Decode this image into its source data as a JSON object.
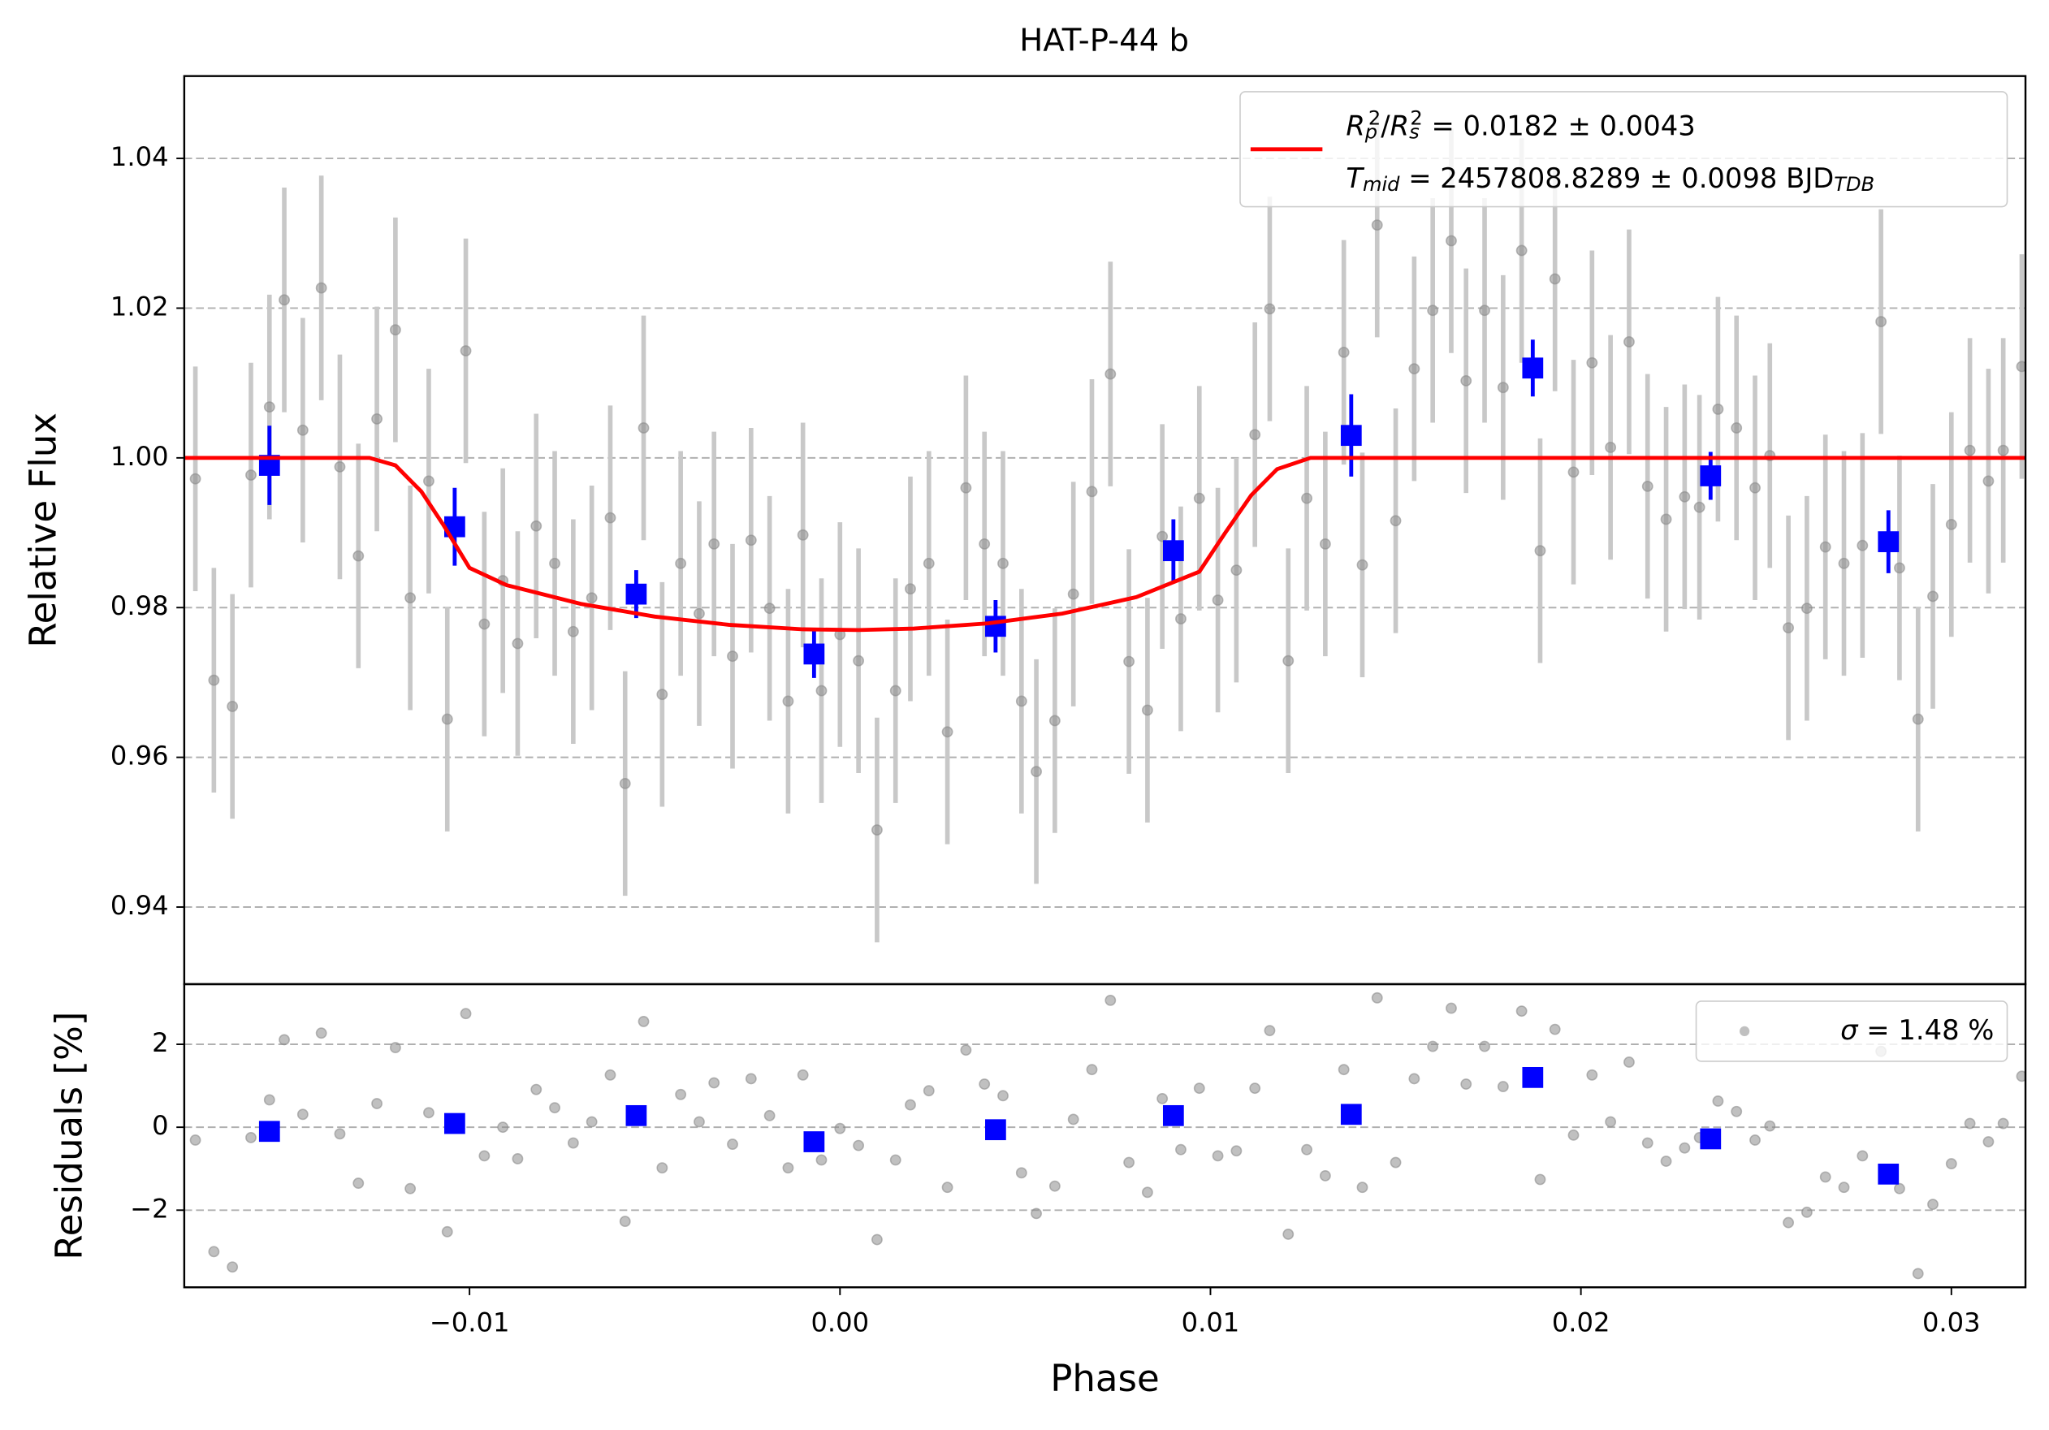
{
  "chart_data": [
    {
      "type": "scatter",
      "title": "HAT-P-44 b",
      "y_label": "Relative Flux",
      "xlim": [
        -0.0177,
        0.032
      ],
      "ylim": [
        0.9297,
        1.051
      ],
      "yticks": [
        0.94,
        0.96,
        0.98,
        {
          "value": 1.0,
          "label": "1.00"
        },
        1.02,
        1.04
      ],
      "grid": true,
      "legend": "upper right",
      "series": [
        {
          "kind": "errorbar",
          "color": "#8c8c8c",
          "error_color": "#c8c8c8",
          "marker": "circle",
          "x": [
            -0.0174,
            -0.0169,
            -0.0164,
            -0.0159,
            -0.0154,
            -0.015,
            -0.0145,
            -0.014,
            -0.0135,
            -0.013,
            -0.0125,
            -0.012,
            -0.0116,
            -0.0111,
            -0.0106,
            -0.0101,
            -0.0096,
            -0.0091,
            -0.0087,
            -0.0082,
            -0.0077,
            -0.0072,
            -0.0067,
            -0.0062,
            -0.0058,
            -0.0053,
            -0.0048,
            -0.0043,
            -0.0038,
            -0.0034,
            -0.0029,
            -0.0024,
            -0.0019,
            -0.0014,
            -0.001,
            -0.0005,
            0.0,
            0.0005,
            0.001,
            0.0015,
            0.0019,
            0.0024,
            0.0029,
            0.0034,
            0.0039,
            0.0044,
            0.0049,
            0.0053,
            0.0058,
            0.0063,
            0.0068,
            0.0073,
            0.0078,
            0.0083,
            0.0087,
            0.0092,
            0.0097,
            0.0102,
            0.0107,
            0.0112,
            0.0116,
            0.0121,
            0.0126,
            0.0131,
            0.0136,
            0.0141,
            0.0145,
            0.015,
            0.0155,
            0.016,
            0.0165,
            0.0169,
            0.0174,
            0.0179,
            0.0184,
            0.0189,
            0.0193,
            0.0198,
            0.0203,
            0.0208,
            0.0213,
            0.0218,
            0.0223,
            0.0228,
            0.0232,
            0.0237,
            0.0242,
            0.0247,
            0.0251,
            0.0256,
            0.0261,
            0.0266,
            0.0271,
            0.0276,
            0.0281,
            0.0286,
            0.0291,
            0.0295,
            0.03,
            0.0305,
            0.031,
            0.0314,
            0.0319
          ],
          "values": [
            0.9972,
            0.9703,
            0.9668,
            0.9977,
            1.0068,
            1.0211,
            1.0037,
            1.0227,
            0.9988,
            0.9869,
            1.0052,
            1.0171,
            0.9813,
            0.9969,
            0.9651,
            1.0143,
            0.9778,
            0.9836,
            0.9752,
            0.9909,
            0.9859,
            0.9768,
            0.9813,
            0.992,
            0.9565,
            1.004,
            0.9684,
            0.9859,
            0.9792,
            0.9885,
            0.9735,
            0.989,
            0.9799,
            0.9675,
            0.9897,
            0.9689,
            0.9764,
            0.9729,
            0.9503,
            0.9689,
            0.9825,
            0.9859,
            0.9634,
            0.996,
            0.9885,
            0.9859,
            0.9675,
            0.9581,
            0.9649,
            0.9818,
            0.9955,
            1.0112,
            0.9728,
            0.9663,
            0.9895,
            0.9785,
            0.9946,
            0.981,
            0.985,
            1.0031,
            1.0199,
            0.9729,
            0.9946,
            0.9885,
            1.0141,
            0.9857,
            1.0311,
            0.9916,
            1.0119,
            1.0197,
            1.029,
            1.0103,
            1.0197,
            1.0094,
            1.0277,
            0.9876,
            1.0239,
            0.9981,
            1.0127,
            1.0014,
            1.0155,
            0.9962,
            0.9918,
            0.9948,
            0.9934,
            1.0065,
            1.004,
            0.996,
            1.0003,
            0.9773,
            0.9799,
            0.9881,
            0.9859,
            0.9883,
            1.0182,
            0.9853,
            0.9651,
            0.9815,
            0.9911,
            1.001,
            0.9969,
            1.001,
            1.0122
          ],
          "errors": [
            0.015,
            0.015,
            0.015,
            0.015,
            0.015,
            0.015,
            0.015,
            0.015,
            0.015,
            0.015,
            0.015,
            0.015,
            0.015,
            0.015,
            0.015,
            0.015,
            0.015,
            0.015,
            0.015,
            0.015,
            0.015,
            0.015,
            0.015,
            0.015,
            0.015,
            0.015,
            0.015,
            0.015,
            0.015,
            0.015,
            0.015,
            0.015,
            0.015,
            0.015,
            0.015,
            0.015,
            0.015,
            0.015,
            0.015,
            0.015,
            0.015,
            0.015,
            0.015,
            0.015,
            0.015,
            0.015,
            0.015,
            0.015,
            0.015,
            0.015,
            0.015,
            0.015,
            0.015,
            0.015,
            0.015,
            0.015,
            0.015,
            0.015,
            0.015,
            0.015,
            0.015,
            0.015,
            0.015,
            0.015,
            0.015,
            0.015,
            0.015,
            0.015,
            0.015,
            0.015,
            0.015,
            0.015,
            0.015,
            0.015,
            0.015,
            0.015,
            0.015,
            0.015,
            0.015,
            0.015,
            0.015,
            0.015,
            0.015,
            0.015,
            0.015,
            0.015,
            0.015,
            0.015,
            0.015,
            0.015,
            0.015,
            0.015,
            0.015,
            0.015,
            0.015,
            0.015,
            0.015,
            0.015,
            0.015,
            0.015,
            0.015,
            0.015,
            0.015
          ]
        },
        {
          "kind": "errorbar",
          "color": "blue",
          "error_color": "blue",
          "marker": "square",
          "x": [
            -0.0154,
            -0.0104,
            -0.0055,
            -0.0007,
            0.0042,
            0.009,
            0.0138,
            0.0187,
            0.0235,
            0.0283
          ],
          "values": [
            0.999,
            0.9908,
            0.9818,
            0.9738,
            0.9775,
            0.9876,
            1.003,
            1.012,
            0.9976,
            0.9888
          ],
          "errors": [
            0.0053,
            0.0052,
            0.0032,
            0.0032,
            0.0035,
            0.0042,
            0.0055,
            0.0038,
            0.0032,
            0.0042
          ]
        },
        {
          "kind": "line",
          "color": "red",
          "name": [
            [
              [
                "R",
                "i"
              ],
              [
                "p",
                "sub"
              ],
              [
                "2",
                "sup"
              ],
              [
                "/",
                ""
              ],
              [
                "R",
                "i"
              ],
              [
                "s",
                "sub"
              ],
              [
                "2",
                "sup"
              ],
              [
                " = 0.0182 ± 0.0043",
                ""
              ]
            ],
            [
              [
                "T",
                "i"
              ],
              [
                "mid",
                "sub"
              ],
              [
                " = 2457808.8289 ± 0.0098 BJD",
                ""
              ],
              [
                "TDB",
                "sub"
              ]
            ]
          ],
          "x": [
            -0.0177,
            -0.0127,
            -0.012,
            -0.0113,
            -0.0107,
            -0.01,
            -0.009,
            -0.007,
            -0.005,
            -0.003,
            -0.001,
            0.0005,
            0.002,
            0.004,
            0.006,
            0.008,
            0.0097,
            0.0104,
            0.0111,
            0.0118,
            0.0127,
            0.032
          ],
          "values": [
            1.0,
            1.0,
            0.999,
            0.9955,
            0.991,
            0.9853,
            0.983,
            0.9805,
            0.9788,
            0.9777,
            0.9771,
            0.977,
            0.9772,
            0.9779,
            0.9792,
            0.9814,
            0.9848,
            0.99,
            0.995,
            0.9985,
            1.0,
            1.0
          ]
        }
      ]
    },
    {
      "type": "scatter",
      "x_label": "Phase",
      "y_label": "Residuals [%]",
      "xlim": [
        -0.0177,
        0.032
      ],
      "ylim": [
        -3.86,
        3.45
      ],
      "xticks": [
        {
          "value": -0.01,
          "label": "−0.01"
        },
        {
          "value": 0,
          "label": "0.00"
        },
        0.01,
        0.02,
        0.03
      ],
      "yticks": [
        {
          "value": -2,
          "label": "−2"
        },
        0,
        2
      ],
      "grid": true,
      "legend": "upper right",
      "series": [
        {
          "kind": "scatter",
          "color": "#8c8c8c",
          "marker": "circle",
          "name": [
            [
              [
                "σ",
                "i"
              ],
              [
                " = 1.48 %",
                ""
              ]
            ]
          ],
          "x": [
            -0.0174,
            -0.0169,
            -0.0164,
            -0.0159,
            -0.0154,
            -0.015,
            -0.0145,
            -0.014,
            -0.0135,
            -0.013,
            -0.0125,
            -0.012,
            -0.0116,
            -0.0111,
            -0.0106,
            -0.0101,
            -0.0096,
            -0.0091,
            -0.0087,
            -0.0082,
            -0.0077,
            -0.0072,
            -0.0067,
            -0.0062,
            -0.0058,
            -0.0053,
            -0.0048,
            -0.0043,
            -0.0038,
            -0.0034,
            -0.0029,
            -0.0024,
            -0.0019,
            -0.0014,
            -0.001,
            -0.0005,
            0.0,
            0.0005,
            0.001,
            0.0015,
            0.0019,
            0.0024,
            0.0029,
            0.0034,
            0.0039,
            0.0044,
            0.0049,
            0.0053,
            0.0058,
            0.0063,
            0.0068,
            0.0073,
            0.0078,
            0.0083,
            0.0087,
            0.0092,
            0.0097,
            0.0102,
            0.0107,
            0.0112,
            0.0116,
            0.0121,
            0.0126,
            0.0131,
            0.0136,
            0.0141,
            0.0145,
            0.015,
            0.0155,
            0.016,
            0.0165,
            0.0169,
            0.0174,
            0.0179,
            0.0184,
            0.0189,
            0.0193,
            0.0198,
            0.0203,
            0.0208,
            0.0213,
            0.0218,
            0.0223,
            0.0228,
            0.0232,
            0.0237,
            0.0242,
            0.0247,
            0.0251,
            0.0256,
            0.0261,
            0.0266,
            0.0271,
            0.0276,
            0.0281,
            0.0286,
            0.0291,
            0.0295,
            0.03,
            0.0305,
            0.031,
            0.0314,
            0.0319
          ],
          "values": [
            -0.31,
            -3.0,
            -3.37,
            -0.25,
            0.66,
            2.11,
            0.31,
            2.27,
            -0.16,
            -1.35,
            0.57,
            1.92,
            -1.48,
            0.35,
            -2.52,
            2.74,
            -0.69,
            0.0,
            -0.76,
            0.91,
            0.47,
            -0.38,
            0.13,
            1.26,
            -2.27,
            2.55,
            -0.98,
            0.79,
            0.13,
            1.07,
            -0.41,
            1.17,
            0.28,
            -0.98,
            1.26,
            -0.79,
            -0.03,
            -0.44,
            -2.71,
            -0.79,
            0.54,
            0.88,
            -1.45,
            1.86,
            1.04,
            0.76,
            -1.1,
            -2.08,
            -1.42,
            0.19,
            1.39,
            3.06,
            -0.85,
            -1.57,
            0.69,
            -0.54,
            0.94,
            -0.69,
            -0.57,
            0.94,
            2.33,
            -2.58,
            -0.54,
            -1.17,
            1.39,
            -1.45,
            3.12,
            -0.85,
            1.17,
            1.95,
            2.87,
            1.04,
            1.95,
            0.98,
            2.8,
            -1.26,
            2.36,
            -0.19,
            1.26,
            0.13,
            1.57,
            -0.38,
            -0.82,
            -0.5,
            -0.25,
            0.63,
            0.38,
            -0.31,
            0.03,
            -2.3,
            -2.05,
            -1.2,
            -1.45,
            -0.69,
            1.83,
            -1.48,
            -3.53,
            -1.86,
            -0.88,
            0.09,
            -0.35,
            0.09,
            1.23
          ]
        },
        {
          "kind": "scatter",
          "color": "blue",
          "marker": "square",
          "x": [
            -0.0154,
            -0.0104,
            -0.0055,
            -0.0007,
            0.0042,
            0.009,
            0.0138,
            0.0187,
            0.0235,
            0.0283
          ],
          "values": [
            -0.1,
            0.09,
            0.28,
            -0.35,
            -0.06,
            0.28,
            0.31,
            1.2,
            -0.28,
            -1.13
          ]
        }
      ]
    }
  ]
}
